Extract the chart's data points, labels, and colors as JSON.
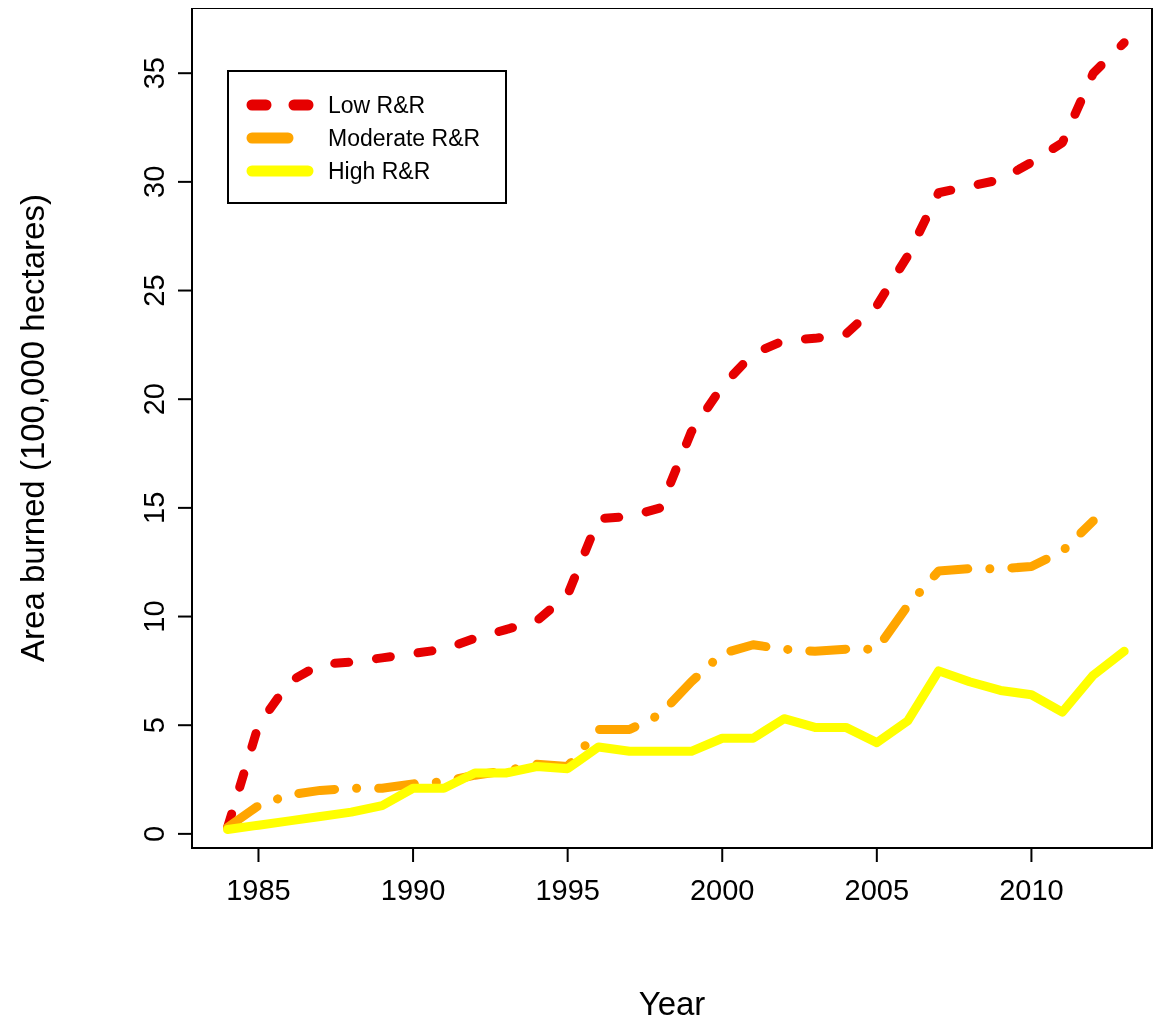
{
  "chart_data": {
    "type": "line",
    "xlabel": "Year",
    "ylabel": "Area burned (100,000 hectares)",
    "x": [
      1984,
      1985,
      1986,
      1987,
      1988,
      1989,
      1990,
      1991,
      1992,
      1993,
      1994,
      1995,
      1996,
      1997,
      1998,
      1999,
      2000,
      2001,
      2002,
      2003,
      2004,
      2005,
      2006,
      2007,
      2008,
      2009,
      2010,
      2011,
      2012,
      2013
    ],
    "series": [
      {
        "name": "Low R&R",
        "color": "#e60000",
        "line_style": "dotted",
        "values": [
          0.3,
          5.0,
          7.0,
          7.8,
          7.9,
          8.1,
          8.3,
          8.5,
          9.0,
          9.4,
          9.8,
          11.0,
          14.5,
          14.6,
          15.0,
          18.5,
          20.6,
          22.1,
          22.7,
          22.8,
          23.0,
          24.3,
          26.6,
          29.5,
          29.8,
          30.1,
          30.9,
          31.8,
          35.0,
          36.4
        ]
      },
      {
        "name": "Moderate R&R",
        "color": "#ffa500",
        "line_style": "dashed",
        "values": [
          0.3,
          1.3,
          1.8,
          2.0,
          2.1,
          2.1,
          2.3,
          2.4,
          2.7,
          2.9,
          3.2,
          3.1,
          4.8,
          4.8,
          5.5,
          7.0,
          8.3,
          8.7,
          8.5,
          8.4,
          8.5,
          8.5,
          10.5,
          12.1,
          12.2,
          12.2,
          12.3,
          13.0,
          14.4,
          null
        ]
      },
      {
        "name": "High R&R",
        "color": "#ffff00",
        "line_style": "solid",
        "values": [
          0.2,
          0.4,
          0.6,
          0.8,
          1.0,
          1.3,
          2.1,
          2.1,
          2.8,
          2.8,
          3.1,
          3.0,
          4.0,
          3.8,
          3.8,
          3.8,
          4.4,
          4.4,
          5.3,
          4.9,
          4.9,
          4.2,
          5.2,
          7.5,
          7.0,
          6.6,
          6.4,
          5.6,
          7.3,
          8.4
        ]
      }
    ],
    "xlim": [
      1982.85,
      2013.9
    ],
    "ylim": [
      -0.65,
      38
    ],
    "xticks": [
      1985,
      1990,
      1995,
      2000,
      2005,
      2010
    ],
    "yticks": [
      0,
      5,
      10,
      15,
      20,
      25,
      30,
      35
    ],
    "legend": "top left",
    "grid": false
  }
}
